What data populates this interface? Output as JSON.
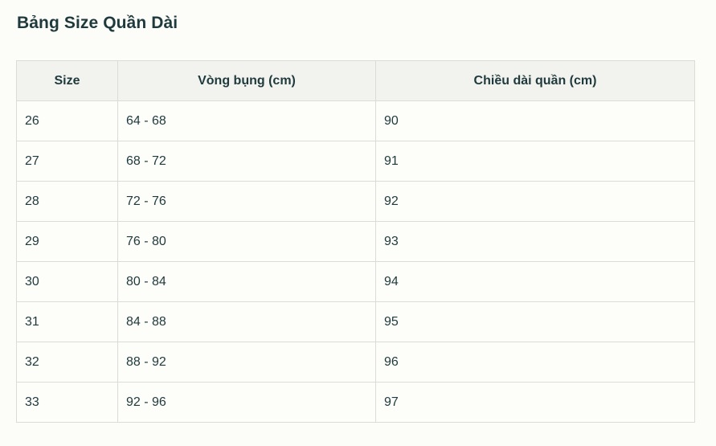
{
  "page": {
    "title": "Bảng Size Quần Dài"
  },
  "table": {
    "headers": [
      "Size",
      "Vòng bụng (cm)",
      "Chiều dài quần (cm)"
    ],
    "rows": [
      [
        "26",
        "64 - 68",
        "90"
      ],
      [
        "27",
        "68 - 72",
        "91"
      ],
      [
        "28",
        "72 - 76",
        "92"
      ],
      [
        "29",
        "76 - 80",
        "93"
      ],
      [
        "30",
        "80 - 84",
        "94"
      ],
      [
        "31",
        "84 - 88",
        "95"
      ],
      [
        "32",
        "88 - 92",
        "96"
      ],
      [
        "33",
        "92 - 96",
        "97"
      ]
    ]
  },
  "colors": {
    "background": "#fcfcf8",
    "header_background": "#f2f2ee",
    "text": "#1f3a3d",
    "border": "#dcdcd6"
  }
}
